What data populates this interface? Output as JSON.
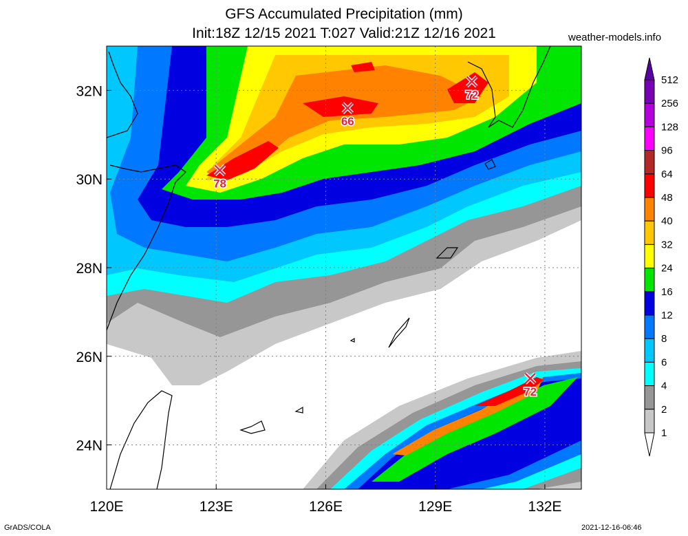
{
  "header": {
    "title_line1": "GFS Accumulated Precipitation (mm)",
    "title_line2": "Init:18Z 12/15 2021 T:027 Valid:21Z 12/16 2021",
    "credit": "weather-models.info"
  },
  "map": {
    "lon_range": [
      120,
      133
    ],
    "lat_range": [
      23,
      33
    ],
    "lon_ticks": [
      {
        "value": 120,
        "label": "120E"
      },
      {
        "value": 123,
        "label": "123E"
      },
      {
        "value": 126,
        "label": "126E"
      },
      {
        "value": 129,
        "label": "129E"
      },
      {
        "value": 132,
        "label": "132E"
      }
    ],
    "lat_ticks": [
      {
        "value": 24,
        "label": "24N"
      },
      {
        "value": 26,
        "label": "26N"
      },
      {
        "value": 28,
        "label": "28N"
      },
      {
        "value": 30,
        "label": "30N"
      },
      {
        "value": 32,
        "label": "32N"
      }
    ],
    "grid": true,
    "peaks": [
      {
        "lon": 123.1,
        "lat": 30.2,
        "label": "78"
      },
      {
        "lon": 126.6,
        "lat": 31.6,
        "label": "66"
      },
      {
        "lon": 130.0,
        "lat": 32.2,
        "label": "72"
      },
      {
        "lon": 131.6,
        "lat": 25.5,
        "label": "72"
      }
    ]
  },
  "colorbar": {
    "levels": [
      {
        "label": "1",
        "color": "#ffffff"
      },
      {
        "label": "2",
        "color": "#c8c8c8"
      },
      {
        "label": "4",
        "color": "#969696"
      },
      {
        "label": "6",
        "color": "#00ffff"
      },
      {
        "label": "8",
        "color": "#00c8ff"
      },
      {
        "label": "12",
        "color": "#0078ff"
      },
      {
        "label": "16",
        "color": "#0000e0"
      },
      {
        "label": "24",
        "color": "#00e600"
      },
      {
        "label": "32",
        "color": "#ffff00"
      },
      {
        "label": "40",
        "color": "#ffc800"
      },
      {
        "label": "48",
        "color": "#ff8200"
      },
      {
        "label": "64",
        "color": "#ff0000"
      },
      {
        "label": "96",
        "color": "#b42828"
      },
      {
        "label": "128",
        "color": "#ff00ff"
      },
      {
        "label": "256",
        "color": "#b400dc"
      },
      {
        "label": "512",
        "color": "#7800b4"
      }
    ],
    "top_arrow_color": "#5a00a0"
  },
  "footer": {
    "left": "GrADS/COLA",
    "right": "2021-12-16-06:46"
  }
}
